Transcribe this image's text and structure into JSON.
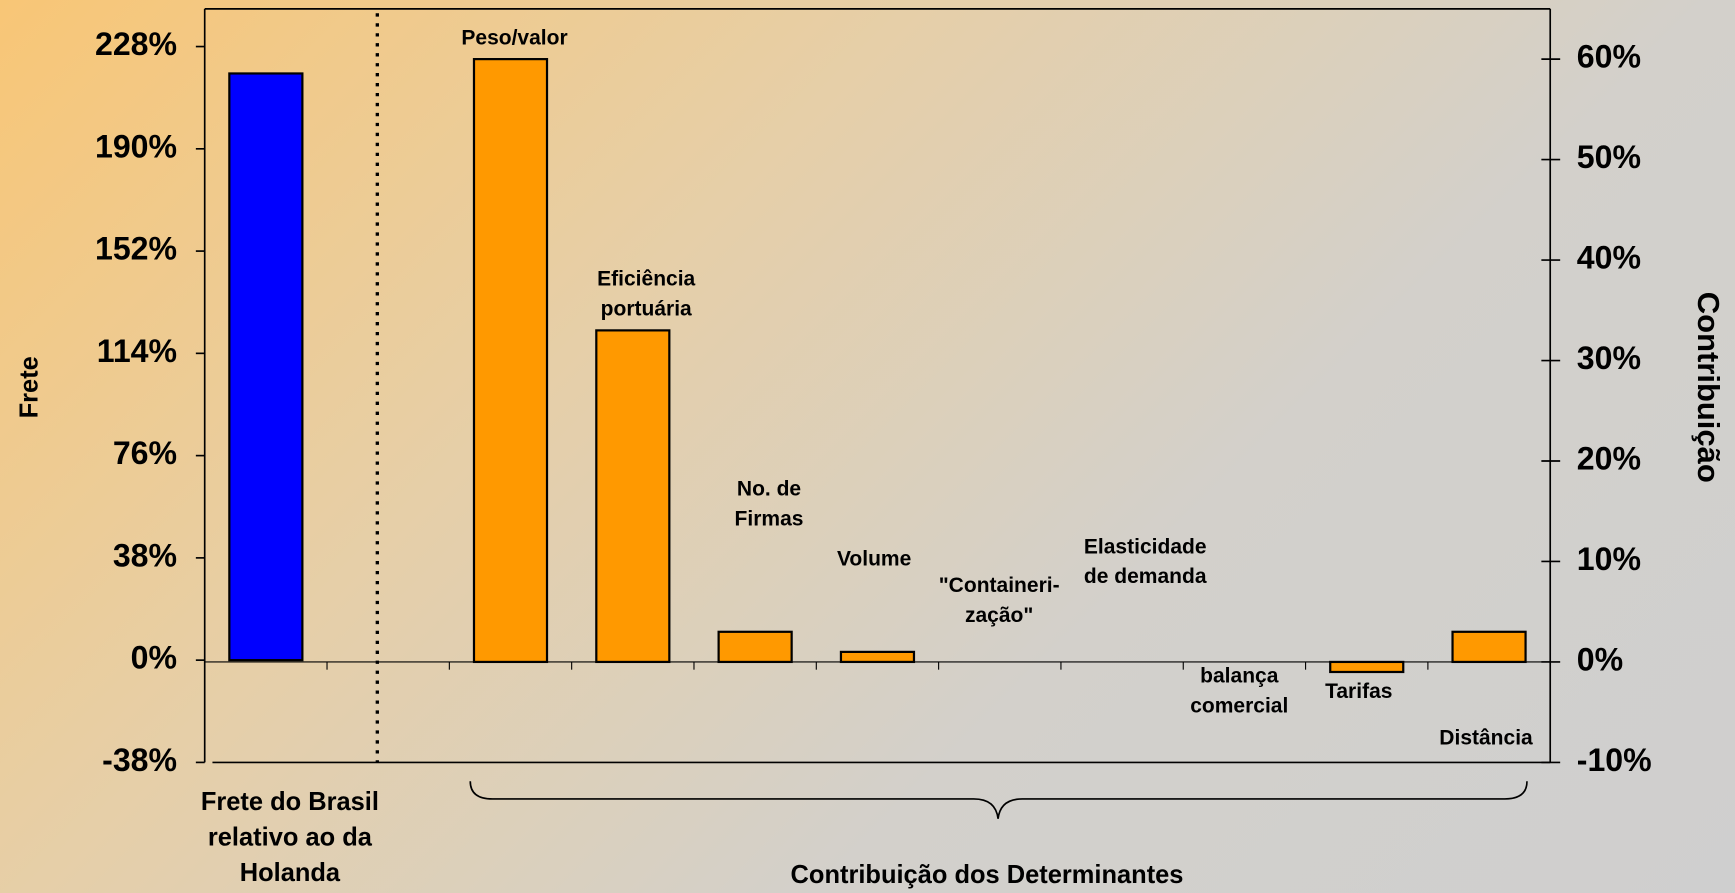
{
  "chart_data": {
    "type": "bar",
    "ylabel": "Frete",
    "y2label": "Contribuição",
    "ylim": [
      -38,
      242
    ],
    "yticks": [
      {
        "value": -38,
        "label": "-38%"
      },
      {
        "value": 0,
        "label": "0%"
      },
      {
        "value": 38,
        "label": "38%"
      },
      {
        "value": 76,
        "label": "76%"
      },
      {
        "value": 114,
        "label": "114%"
      },
      {
        "value": 152,
        "label": "152%"
      },
      {
        "value": 190,
        "label": "190%"
      },
      {
        "value": 228,
        "label": "228%"
      }
    ],
    "y2lim": [
      -10,
      65
    ],
    "y2ticks": [
      {
        "value": -10,
        "label": "-10%"
      },
      {
        "value": 0,
        "label": "0%"
      },
      {
        "value": 10,
        "label": "10%"
      },
      {
        "value": 20,
        "label": "20%"
      },
      {
        "value": 30,
        "label": "30%"
      },
      {
        "value": 40,
        "label": "40%"
      },
      {
        "value": 50,
        "label": "50%"
      },
      {
        "value": 60,
        "label": "60%"
      }
    ],
    "reference": {
      "label": [
        "Frete do Brasil",
        "relativo ao da",
        "Holanda"
      ],
      "value": 218,
      "color": "#0000ff"
    },
    "group_label": "Contribuição dos Determinantes",
    "categories": [
      [
        "Peso/valor"
      ],
      [
        "Eficiência",
        "portuária"
      ],
      [
        "No. de",
        "Firmas"
      ],
      [
        "Volume"
      ],
      [
        "\"Containeri-",
        "zação\""
      ],
      [
        "Elasticidade",
        "de demanda"
      ],
      [
        "balança",
        "comercial"
      ],
      [
        "Tarifas"
      ],
      [
        "Distância"
      ]
    ],
    "series": [
      {
        "axis": "y2",
        "color": "#ff9900",
        "values": [
          60,
          33,
          3,
          1,
          0,
          0,
          0,
          -1,
          3
        ]
      }
    ]
  }
}
